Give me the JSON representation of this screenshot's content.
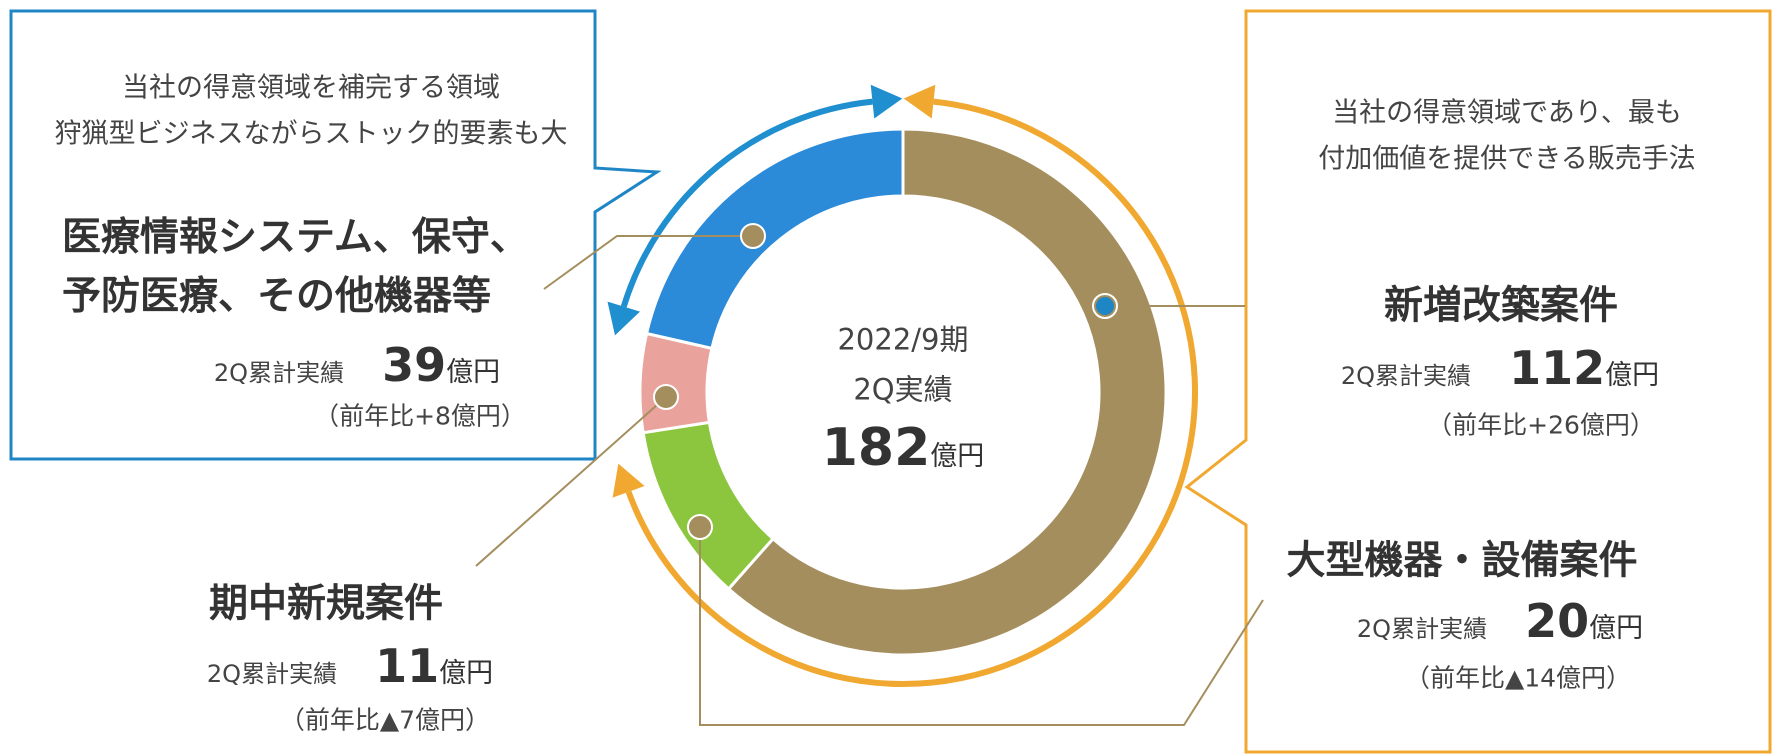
{
  "chart_data": {
    "type": "donut",
    "center_label": [
      "2022/9期",
      "2Q実績"
    ],
    "total": 182,
    "unit": "億円",
    "metric_label": "2Q累計実績",
    "categories": [
      "新増改築案件",
      "大型機器・設備案件",
      "期中新規案件",
      "医療情報システム、保守、予防医療、その他機器等"
    ],
    "values": [
      112,
      20,
      11,
      39
    ],
    "colors": [
      "#a58e5d",
      "#8cc63e",
      "#e9a29c",
      "#2b8bd9"
    ],
    "changes": [
      "（前年比+26億円）",
      "（前年比▲14億円）",
      "（前年比▲7億円）",
      "（前年比+8億円）"
    ],
    "notes": [
      [
        "当社の得意領域であり、最も",
        "付加価値を提供できる販売手法"
      ],
      null,
      null,
      [
        "当社の得意領域を補完する領域",
        "狩猟型ビジネスながらストック的要素も大"
      ]
    ]
  }
}
